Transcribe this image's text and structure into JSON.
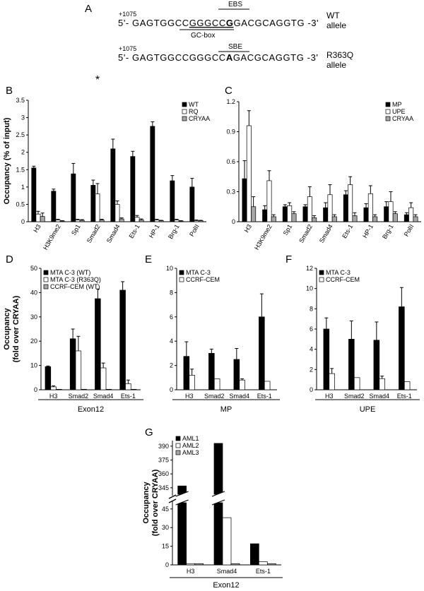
{
  "seq": {
    "panel": "A",
    "pos_wt": "+1075",
    "pos_rq": "+1075",
    "wt": {
      "pre": "5'- GAGTGGCC",
      "box": "GGGCC",
      "mut": "G",
      "post": "GACGCAGGTG -3'",
      "site": "EBS",
      "box_label": "GC-box",
      "allele1": "WT",
      "allele2": "allele"
    },
    "rq": {
      "pre": "5'- GAGTGGCCGGGCC",
      "mut": "A",
      "post": "GACGCAGGTG -3'",
      "site": "SBE",
      "allele1": "R363Q",
      "allele2": "allele"
    }
  },
  "chart_data": [
    {
      "panel": "B",
      "type": "bar",
      "ylabel": "Occupancy (% of input)",
      "ylim": [
        0,
        3.5
      ],
      "yticks": [
        "0",
        "0.5",
        "1",
        "1.5",
        "2",
        "2.5",
        "3",
        "3.5"
      ],
      "categories": [
        "H3",
        "H3K9me2",
        "Sp1",
        "Smad2",
        "Smad4",
        "Ets-1",
        "HP-1",
        "Brg-1",
        "PolII"
      ],
      "series": [
        {
          "name": "WT",
          "values": [
            1.55,
            0.88,
            1.38,
            1.05,
            2.1,
            1.88,
            2.75,
            1.18,
            1.0
          ],
          "err": [
            0.05,
            0.06,
            0.3,
            0.15,
            0.28,
            0.15,
            0.13,
            0.15,
            0.25
          ]
        },
        {
          "name": "RQ",
          "values": [
            0.22,
            0.05,
            0.05,
            0.8,
            0.5,
            0.13,
            0.05,
            0.05,
            0.03
          ],
          "err": [
            0.08,
            0.02,
            0.02,
            0.3,
            0.1,
            0.05,
            0.02,
            0.02,
            0.02
          ]
        },
        {
          "name": "CRYAA",
          "values": [
            0.15,
            0.02,
            0.04,
            0.05,
            0.08,
            0.05,
            0.03,
            0.02,
            0.03
          ],
          "err": [
            0.1,
            0.01,
            0.02,
            0.02,
            0.03,
            0.03,
            0.01,
            0.01,
            0.01
          ]
        }
      ],
      "annotation": "*"
    },
    {
      "panel": "C",
      "type": "bar",
      "ylim": [
        0,
        1.2
      ],
      "yticks": [
        "0",
        "0.3",
        "0.6",
        "0.9",
        "1.2"
      ],
      "categories": [
        "H3",
        "H3K9me2",
        "Sp1",
        "Smad2",
        "Smad4",
        "Ets-1",
        "HP-1",
        "Brg-1",
        "PolII"
      ],
      "series": [
        {
          "name": "MP",
          "values": [
            0.43,
            0.12,
            0.15,
            0.15,
            0.14,
            0.27,
            0.14,
            0.15,
            0.07
          ],
          "err": [
            0.18,
            0.04,
            0.02,
            0.02,
            0.05,
            0.04,
            0.04,
            0.05,
            0.02
          ]
        },
        {
          "name": "UPE",
          "values": [
            0.96,
            0.41,
            0.16,
            0.25,
            0.27,
            0.37,
            0.28,
            0.2,
            0.14
          ],
          "err": [
            0.15,
            0.1,
            0.03,
            0.1,
            0.1,
            0.08,
            0.08,
            0.1,
            0.05
          ]
        },
        {
          "name": "CRYAA",
          "values": [
            0.15,
            0.05,
            0.08,
            0.04,
            0.05,
            0.06,
            0.05,
            0.08,
            0.05
          ],
          "err": [
            0.1,
            0.02,
            0.02,
            0.02,
            0.02,
            0.03,
            0.02,
            0.02,
            0.02
          ]
        }
      ]
    },
    {
      "panel": "D",
      "type": "bar",
      "ylabel": "Occupancy (fold over CRYAA)",
      "ylim": [
        0,
        50
      ],
      "yticks": [
        "0",
        "10",
        "20",
        "30",
        "40",
        "50"
      ],
      "categories": [
        "H3",
        "Smad2",
        "Smad4",
        "Ets-1"
      ],
      "xgroup": "Exon12",
      "series": [
        {
          "name": "MTA C-3 (WT)",
          "values": [
            9.5,
            21,
            37.5,
            41
          ],
          "err": [
            0.3,
            4,
            4,
            3.5
          ]
        },
        {
          "name": "MTA C-3 (R363Q)",
          "values": [
            1.2,
            16,
            9,
            2.5
          ],
          "err": [
            0.4,
            6,
            2,
            1.5
          ]
        },
        {
          "name": "CCRF-CEM (WT)",
          "values": [
            0.2,
            0.2,
            0.2,
            0.2
          ],
          "err": [
            0,
            0,
            0,
            0
          ]
        }
      ]
    },
    {
      "panel": "E",
      "type": "bar",
      "ylim": [
        0,
        10
      ],
      "yticks": [
        "0",
        "2",
        "4",
        "6",
        "8",
        "10"
      ],
      "categories": [
        "H3",
        "Smad2",
        "Smad4",
        "Ets-1"
      ],
      "xgroup": "MP",
      "series": [
        {
          "name": "MTA C-3",
          "values": [
            2.75,
            3.0,
            2.5,
            6.0
          ],
          "err": [
            1.2,
            0.35,
            0.9,
            1.9
          ]
        },
        {
          "name": "CCRF-CEM",
          "values": [
            1.2,
            0.9,
            0.8,
            0.7
          ],
          "err": [
            0.5,
            0,
            0.1,
            0
          ]
        }
      ]
    },
    {
      "panel": "F",
      "type": "bar",
      "ylim": [
        0,
        12
      ],
      "yticks": [
        "0",
        "2",
        "4",
        "6",
        "8",
        "10",
        "12"
      ],
      "categories": [
        "H3",
        "Smad2",
        "Smad4",
        "Ets-1"
      ],
      "xgroup": "UPE",
      "series": [
        {
          "name": "MTA C-3",
          "values": [
            6.0,
            5.0,
            4.9,
            8.2
          ],
          "err": [
            1.1,
            1.8,
            1.8,
            1.9
          ]
        },
        {
          "name": "CCRF-CEM",
          "values": [
            1.6,
            1.2,
            1.1,
            0.8
          ],
          "err": [
            0.5,
            0,
            0.25,
            0
          ]
        }
      ]
    },
    {
      "panel": "G",
      "type": "bar",
      "ylabel": "Occupancy (fold over CRYAA)",
      "yticks_low": [
        "0",
        "15",
        "30",
        "45"
      ],
      "yticks_high": [
        "345",
        "360",
        "375",
        "390"
      ],
      "ylim_low": [
        0,
        50
      ],
      "ylim_high": [
        338,
        396
      ],
      "categories": [
        "H3",
        "Smad4",
        "Ets-1"
      ],
      "xgroup": "Exon12",
      "series": [
        {
          "name": "AML1",
          "values": [
            347,
            393,
            17
          ]
        },
        {
          "name": "AML2",
          "values": [
            1,
            38,
            2.5
          ]
        },
        {
          "name": "AML3",
          "values": [
            1,
            1,
            1
          ]
        }
      ]
    }
  ]
}
